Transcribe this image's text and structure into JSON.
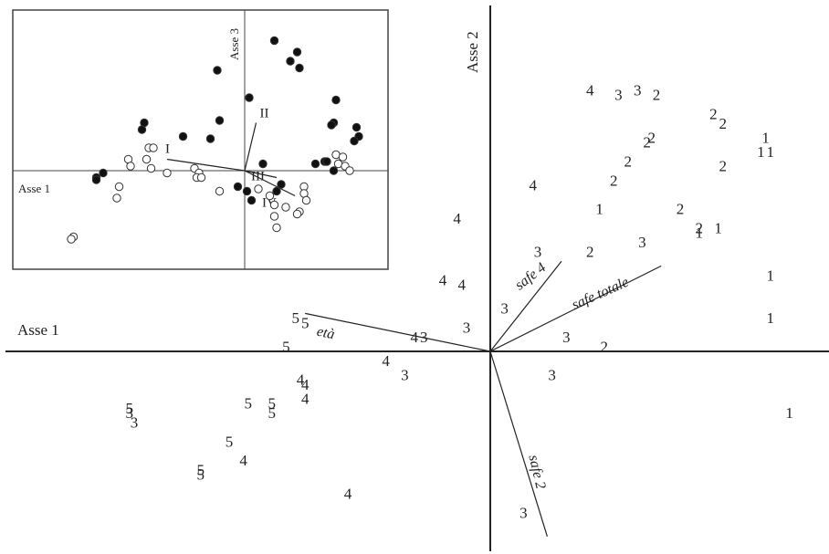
{
  "chart_data": [
    {
      "type": "scatter",
      "description_axes": "main biplot",
      "xlabel": "Asse 1",
      "ylabel": "Asse 2",
      "xlim": [
        -10.2,
        7.0
      ],
      "ylim": [
        -4.2,
        7.0
      ],
      "grid": false,
      "points": [
        {
          "x": 2.1,
          "y": 5.5,
          "label": "4"
        },
        {
          "x": 2.7,
          "y": 5.4,
          "label": "3"
        },
        {
          "x": 3.1,
          "y": 5.5,
          "label": "3"
        },
        {
          "x": 3.5,
          "y": 5.4,
          "label": "2"
        },
        {
          "x": 4.7,
          "y": 5.0,
          "label": "2"
        },
        {
          "x": 4.9,
          "y": 4.8,
          "label": "2"
        },
        {
          "x": 3.3,
          "y": 4.4,
          "label": "2"
        },
        {
          "x": 3.4,
          "y": 4.5,
          "label": "2"
        },
        {
          "x": 5.8,
          "y": 4.5,
          "label": "1"
        },
        {
          "x": 5.7,
          "y": 4.2,
          "label": "1"
        },
        {
          "x": 5.9,
          "y": 4.2,
          "label": "1"
        },
        {
          "x": 2.9,
          "y": 4.0,
          "label": "2"
        },
        {
          "x": 4.9,
          "y": 3.9,
          "label": "2"
        },
        {
          "x": 0.9,
          "y": 3.5,
          "label": "4"
        },
        {
          "x": 2.6,
          "y": 3.6,
          "label": "2"
        },
        {
          "x": 2.3,
          "y": 3.0,
          "label": "1"
        },
        {
          "x": 4.0,
          "y": 3.0,
          "label": "2"
        },
        {
          "x": 4.4,
          "y": 2.6,
          "label": "2"
        },
        {
          "x": 4.4,
          "y": 2.5,
          "label": "1"
        },
        {
          "x": 4.8,
          "y": 2.6,
          "label": "1"
        },
        {
          "x": -0.7,
          "y": 2.8,
          "label": "4"
        },
        {
          "x": 1.0,
          "y": 2.1,
          "label": "3"
        },
        {
          "x": 2.1,
          "y": 2.1,
          "label": "2"
        },
        {
          "x": 3.2,
          "y": 2.3,
          "label": "3"
        },
        {
          "x": -1.0,
          "y": 1.5,
          "label": "4"
        },
        {
          "x": -0.6,
          "y": 1.4,
          "label": "4"
        },
        {
          "x": 0.3,
          "y": 0.9,
          "label": "3"
        },
        {
          "x": 5.9,
          "y": 1.6,
          "label": "1"
        },
        {
          "x": 5.9,
          "y": 0.7,
          "label": "1"
        },
        {
          "x": -0.5,
          "y": 0.5,
          "label": "3"
        },
        {
          "x": -1.6,
          "y": 0.3,
          "label": "4"
        },
        {
          "x": -1.4,
          "y": 0.3,
          "label": "3"
        },
        {
          "x": 1.6,
          "y": 0.3,
          "label": "3"
        },
        {
          "x": 2.4,
          "y": 0.1,
          "label": "2"
        },
        {
          "x": -4.1,
          "y": 0.7,
          "label": "5"
        },
        {
          "x": -3.9,
          "y": 0.6,
          "label": "5"
        },
        {
          "x": -4.3,
          "y": 0.1,
          "label": "5"
        },
        {
          "x": -2.2,
          "y": -0.2,
          "label": "4"
        },
        {
          "x": -1.8,
          "y": -0.5,
          "label": "3"
        },
        {
          "x": 1.3,
          "y": -0.5,
          "label": "3"
        },
        {
          "x": -4.0,
          "y": -0.6,
          "label": "4"
        },
        {
          "x": -3.9,
          "y": -0.7,
          "label": "4"
        },
        {
          "x": -3.9,
          "y": -1.0,
          "label": "4"
        },
        {
          "x": -5.1,
          "y": -1.1,
          "label": "5"
        },
        {
          "x": -4.6,
          "y": -1.1,
          "label": "5"
        },
        {
          "x": -4.6,
          "y": -1.3,
          "label": "5"
        },
        {
          "x": -7.6,
          "y": -1.2,
          "label": "5"
        },
        {
          "x": -7.6,
          "y": -1.3,
          "label": "3"
        },
        {
          "x": -7.5,
          "y": -1.5,
          "label": "3"
        },
        {
          "x": -5.5,
          "y": -1.9,
          "label": "5"
        },
        {
          "x": -5.2,
          "y": -2.3,
          "label": "4"
        },
        {
          "x": -6.1,
          "y": -2.5,
          "label": "5"
        },
        {
          "x": -6.1,
          "y": -2.6,
          "label": "5"
        },
        {
          "x": -3.0,
          "y": -3.0,
          "label": "4"
        },
        {
          "x": 6.3,
          "y": -1.3,
          "label": "1"
        },
        {
          "x": 0.7,
          "y": -3.4,
          "label": "3"
        }
      ],
      "vectors": [
        {
          "label": "età",
          "to": [
            -3.9,
            0.8
          ]
        },
        {
          "label": "safe 4",
          "to": [
            1.5,
            1.9
          ]
        },
        {
          "label": "safe totale",
          "to": [
            3.6,
            1.8
          ]
        },
        {
          "label": "safe 2",
          "to": [
            1.2,
            -3.9
          ]
        }
      ]
    },
    {
      "type": "scatter",
      "description_axes": "inset biplot",
      "xlabel": "Asse 1",
      "ylabel": "Asse 3",
      "xlim": [
        -10.2,
        6.0
      ],
      "ylim": [
        -4.4,
        6.9
      ],
      "grid": false,
      "series": [
        {
          "name": "",
          "marker": "filled-circle",
          "points": [
            [
              1.3,
              5.7
            ],
            [
              2.3,
              5.2
            ],
            [
              2.0,
              4.8
            ],
            [
              2.4,
              4.5
            ],
            [
              -1.2,
              4.4
            ],
            [
              0.2,
              3.2
            ],
            [
              4.0,
              3.1
            ],
            [
              -4.4,
              2.1
            ],
            [
              -1.1,
              2.2
            ],
            [
              3.9,
              2.1
            ],
            [
              3.8,
              2.0
            ],
            [
              -4.5,
              1.8
            ],
            [
              -2.7,
              1.5
            ],
            [
              -1.5,
              1.4
            ],
            [
              4.9,
              1.9
            ],
            [
              5.0,
              1.5
            ],
            [
              4.8,
              1.3
            ],
            [
              0.8,
              0.3
            ],
            [
              3.1,
              0.3
            ],
            [
              3.5,
              0.4
            ],
            [
              3.9,
              0.0
            ],
            [
              3.6,
              0.4
            ],
            [
              -6.2,
              -0.1
            ],
            [
              -6.5,
              -0.3
            ],
            [
              -6.5,
              -0.4
            ],
            [
              -0.3,
              -0.7
            ],
            [
              0.1,
              -0.9
            ],
            [
              0.3,
              -1.3
            ],
            [
              1.6,
              -0.6
            ],
            [
              1.4,
              -0.9
            ]
          ]
        },
        {
          "name": "",
          "marker": "open-circle",
          "points": [
            [
              -4.2,
              1.0
            ],
            [
              -4.0,
              1.0
            ],
            [
              -4.3,
              0.5
            ],
            [
              -5.1,
              0.5
            ],
            [
              -5.0,
              0.2
            ],
            [
              -4.1,
              0.1
            ],
            [
              -3.4,
              -0.1
            ],
            [
              -2.2,
              0.1
            ],
            [
              -2.0,
              -0.1
            ],
            [
              -2.1,
              -0.3
            ],
            [
              -1.9,
              -0.3
            ],
            [
              -5.5,
              -0.7
            ],
            [
              -5.6,
              -1.2
            ],
            [
              -1.1,
              -0.9
            ],
            [
              0.6,
              -0.8
            ],
            [
              1.1,
              -1.1
            ],
            [
              1.3,
              -1.5
            ],
            [
              2.6,
              -0.7
            ],
            [
              2.6,
              -1.0
            ],
            [
              2.7,
              -1.3
            ],
            [
              2.4,
              -1.8
            ],
            [
              1.8,
              -1.6
            ],
            [
              1.3,
              -2.0
            ],
            [
              2.3,
              -1.9
            ],
            [
              1.4,
              -2.5
            ],
            [
              4.0,
              0.7
            ],
            [
              4.3,
              0.6
            ],
            [
              4.1,
              0.3
            ],
            [
              4.4,
              0.2
            ],
            [
              4.6,
              0.0
            ],
            [
              -7.5,
              -2.9
            ],
            [
              -7.6,
              -3.0
            ]
          ]
        }
      ],
      "vectors": [
        {
          "label": "I",
          "to": [
            -3.4,
            0.5
          ]
        },
        {
          "label": "II",
          "to": [
            0.5,
            2.1
          ]
        },
        {
          "label": "III",
          "to": [
            1.4,
            -0.3
          ]
        },
        {
          "label": "IV",
          "to": [
            2.2,
            -1.1
          ]
        }
      ]
    }
  ]
}
